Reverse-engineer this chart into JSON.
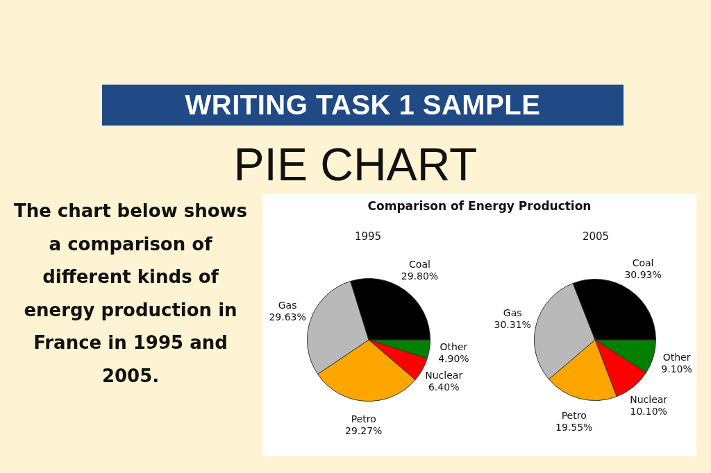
{
  "chart_data": [
    {
      "type": "other",
      "title": "WRITING TASK 1 SAMPLE",
      "subtitle": "PIE CHART",
      "annotations": [
        "The chart below shows a comparison of different kinds of energy production in France in 1995 and 2005."
      ]
    },
    {
      "type": "pie",
      "title": "Comparison of Energy Production",
      "subtitle": "1995",
      "categories": [
        "Other",
        "Nuclear",
        "Petro",
        "Gas",
        "Coal"
      ],
      "values": [
        4.9,
        6.4,
        29.27,
        29.63,
        29.8
      ],
      "value_labels": [
        "4.90%",
        "6.40%",
        "29.27%",
        "29.63%",
        "29.80%"
      ],
      "colors": [
        "#008000",
        "#ff0000",
        "#ffa500",
        "#b9b9b9",
        "#000000"
      ]
    },
    {
      "type": "pie",
      "subtitle": "2005",
      "categories": [
        "Other",
        "Nuclear",
        "Petro",
        "Gas",
        "Coal"
      ],
      "values": [
        9.1,
        10.1,
        19.55,
        30.31,
        30.93
      ],
      "value_labels": [
        "9.10%",
        "10.10%",
        "19.55%",
        "30.31%",
        "30.93%"
      ],
      "colors": [
        "#008000",
        "#ff0000",
        "#ffa500",
        "#b9b9b9",
        "#000000"
      ]
    }
  ]
}
